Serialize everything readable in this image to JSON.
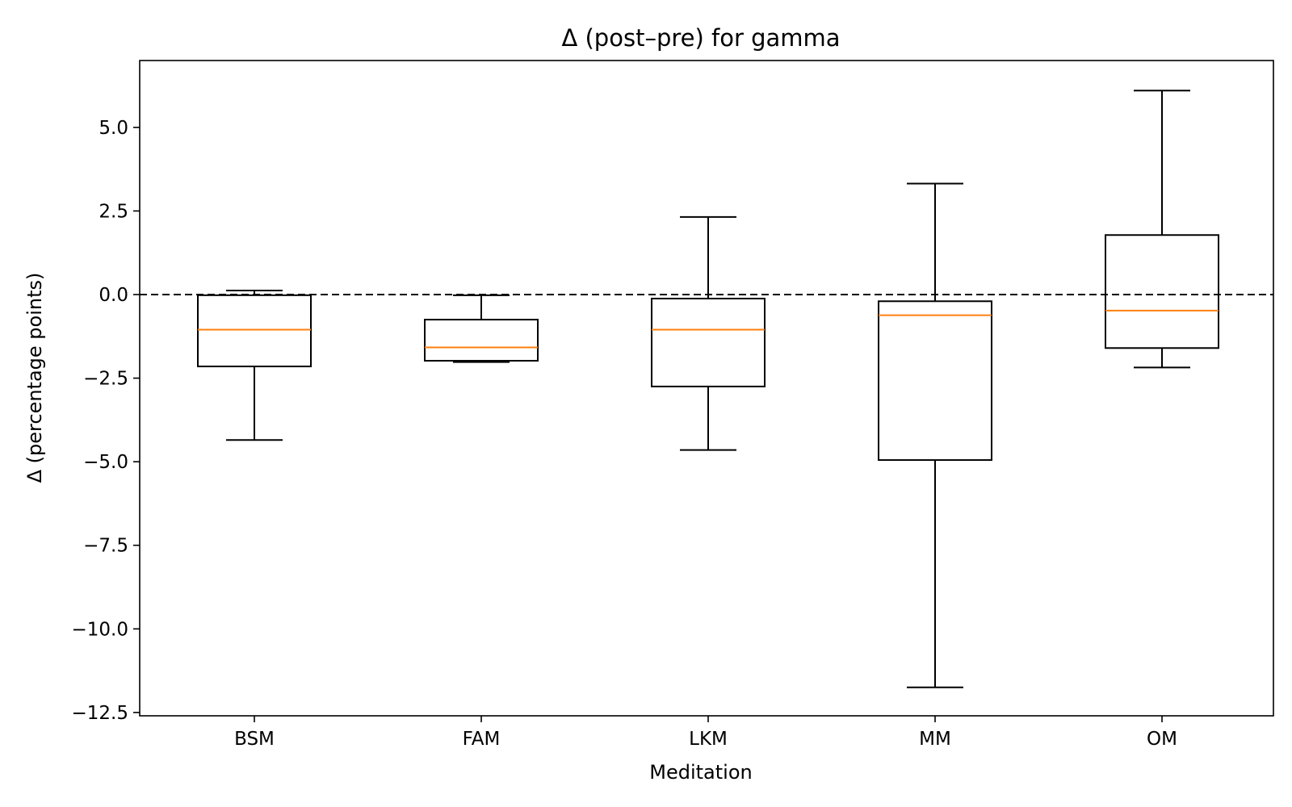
{
  "chart_data": {
    "type": "box",
    "title": "Δ (post–pre) for gamma",
    "xlabel": "Meditation",
    "ylabel": "Δ (percentage points)",
    "ylim": [
      -12.6,
      7.0
    ],
    "yticks": [
      5.0,
      2.5,
      0.0,
      -2.5,
      -5.0,
      -7.5,
      -10.0,
      -12.5
    ],
    "ytick_labels": [
      "5.0",
      "2.5",
      "0.0",
      "−2.5",
      "−5.0",
      "−7.5",
      "−10.0",
      "−12.5"
    ],
    "reference_line": 0.0,
    "grid": false,
    "categories": [
      "BSM",
      "FAM",
      "LKM",
      "MM",
      "OM"
    ],
    "boxes": [
      {
        "label": "BSM",
        "whisker_low": -4.35,
        "q1": -2.15,
        "median": -1.05,
        "q3": -0.02,
        "whisker_high": 0.12
      },
      {
        "label": "FAM",
        "whisker_low": -2.02,
        "q1": -1.98,
        "median": -1.58,
        "q3": -0.75,
        "whisker_high": -0.02
      },
      {
        "label": "LKM",
        "whisker_low": -4.65,
        "q1": -2.75,
        "median": -1.05,
        "q3": -0.12,
        "whisker_high": 2.32
      },
      {
        "label": "MM",
        "whisker_low": -11.75,
        "q1": -4.95,
        "median": -0.62,
        "q3": -0.2,
        "whisker_high": 3.32
      },
      {
        "label": "OM",
        "whisker_low": -2.18,
        "q1": -1.6,
        "median": -0.48,
        "q3": 1.78,
        "whisker_high": 6.1
      }
    ],
    "colors": {
      "box": "#000000",
      "median": "#ff7f0e",
      "reference": "#000000"
    }
  }
}
